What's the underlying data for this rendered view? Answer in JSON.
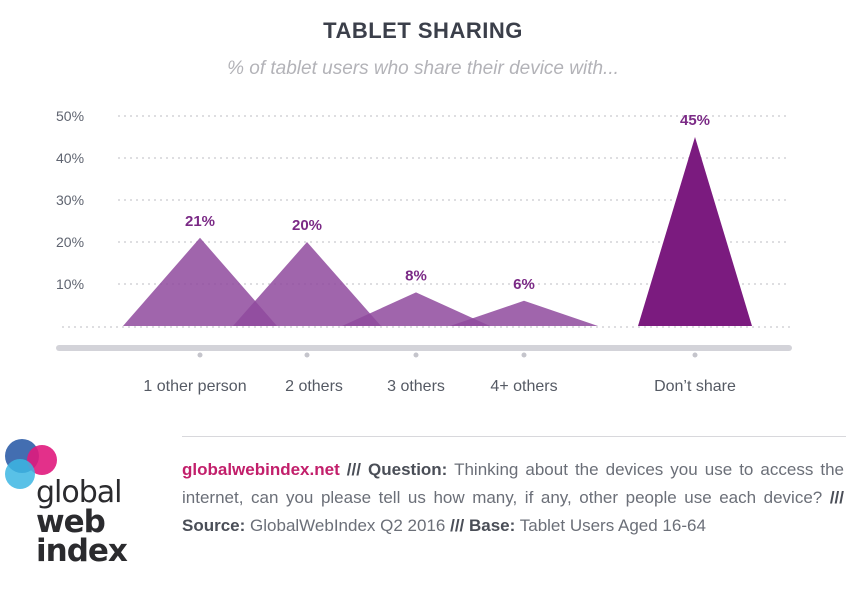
{
  "chart_data": {
    "type": "area",
    "title": "TABLET SHARING",
    "subtitle": "% of tablet users who share their device with...",
    "categories": [
      "1 other person",
      "2 others",
      "3 others",
      "4+ others",
      "Don’t share"
    ],
    "values": [
      21,
      20,
      8,
      6,
      45
    ],
    "data_labels": [
      "21%",
      "20%",
      "8%",
      "6%",
      "45%"
    ],
    "y_ticks": [
      "50%",
      "40%",
      "30%",
      "20%",
      "10%"
    ],
    "ylim": [
      0,
      50
    ],
    "grid": true,
    "colors": {
      "share": "#8f4a9e",
      "dont_share": "#7b1b7f",
      "label": "#7b2a86",
      "axis": "#d3d3d9"
    }
  },
  "footer": {
    "site": "globalwebindex.net",
    "sep": "///",
    "question_label": "Question:",
    "question_text": "Thinking about the devices you use to access the internet, can you please tell us how many, if any, other people use each device?",
    "source_label": "Source:",
    "source_text": "GlobalWebIndex Q2 2016",
    "base_label": "Base:",
    "base_text": "Tablet Users Aged 16-64"
  },
  "logo": {
    "line1": "global",
    "line2": "web",
    "line3": "index",
    "colors": [
      "#2f5ea8",
      "#e0197d",
      "#3cb6e3"
    ]
  }
}
